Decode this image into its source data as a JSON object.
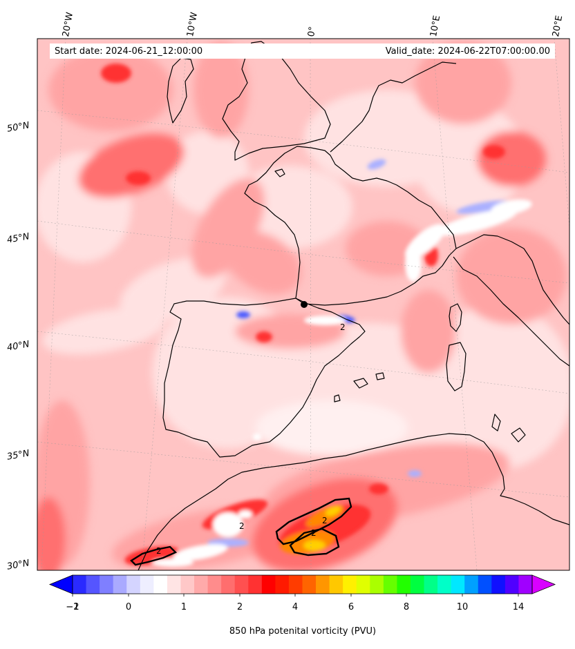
{
  "map": {
    "start_date_label": "Start date: 2024-06-21_12:00:00",
    "valid_date_label": "Valid_date: 2024-06-22T07:00:00.00",
    "longitude_labels": [
      "20°W",
      "10°W",
      "0°",
      "10°E",
      "20°E"
    ],
    "latitude_labels": [
      "50°N",
      "45°N",
      "40°N",
      "35°N",
      "30°N"
    ],
    "contour_labels": [
      "2",
      "2",
      "2",
      "2",
      "2"
    ]
  },
  "colorbar": {
    "title": "850 hPa potenital vorticity (PVU)",
    "tick_labels": [
      "−2",
      "−1",
      "0",
      "1",
      "2",
      "4",
      "6",
      "8",
      "10",
      "14"
    ],
    "colors": [
      "#0000ff",
      "#2a2aff",
      "#5555ff",
      "#7f7fff",
      "#aaaaff",
      "#d4d4ff",
      "#eeeeff",
      "#ffffff",
      "#ffe4e4",
      "#ffc8c8",
      "#ffaaaa",
      "#ff8c8c",
      "#ff6e6e",
      "#ff5050",
      "#ff3232",
      "#ff0000",
      "#ff1a00",
      "#ff3c00",
      "#ff6400",
      "#ff9600",
      "#ffc800",
      "#fff000",
      "#e0ff00",
      "#aaff00",
      "#66ff00",
      "#22ff00",
      "#00ff40",
      "#00ff88",
      "#00ffc8",
      "#00e8ff",
      "#00a0ff",
      "#0050ff",
      "#1010ff",
      "#5000ff",
      "#a000ff",
      "#d800ff"
    ]
  },
  "palette": {
    "base": "#ffc4c4",
    "light": "#ffe2e2",
    "pale": "#fff0f0",
    "mid": "#ffa4a4",
    "strong": "#ff7070",
    "hot": "#ff3030",
    "core": "#ff1010",
    "blue": "#aab0ff",
    "deepblue": "#4a58ff",
    "orange": "#ff8800",
    "yellow": "#ffd000"
  }
}
